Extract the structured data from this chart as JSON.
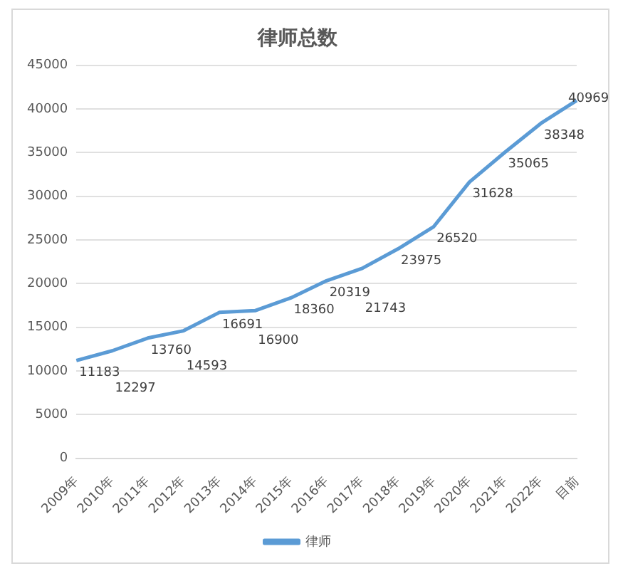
{
  "chart_data": {
    "type": "line",
    "title": "律师总数",
    "categories": [
      "2009年",
      "2010年",
      "2011年",
      "2012年",
      "2013年",
      "2014年",
      "2015年",
      "2016年",
      "2017年",
      "2018年",
      "2019年",
      "2020年",
      "2021年",
      "2022年",
      "目前"
    ],
    "series": [
      {
        "name": "律师",
        "color": "#5b9bd5",
        "values": [
          11183,
          12297,
          13760,
          14593,
          16691,
          16900,
          18360,
          20319,
          21743,
          23975,
          26520,
          31628,
          35065,
          38348,
          40969
        ]
      }
    ],
    "ylim": [
      0,
      45000
    ],
    "yticks": [
      0,
      5000,
      10000,
      15000,
      20000,
      25000,
      30000,
      35000,
      40000,
      45000
    ],
    "grid": "y",
    "legend": "bottom",
    "data_labels": true,
    "marker": "none",
    "line_style": "solid"
  }
}
